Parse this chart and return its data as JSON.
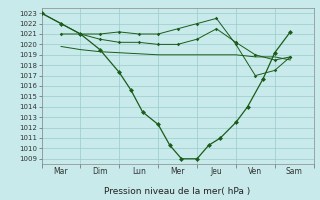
{
  "bg_color": "#c8eaea",
  "grid_color": "#99cccc",
  "line_color": "#1a5c1a",
  "ylim": [
    1008.5,
    1023.5
  ],
  "yticks": [
    1009,
    1010,
    1011,
    1012,
    1013,
    1014,
    1015,
    1016,
    1017,
    1018,
    1019,
    1020,
    1021,
    1022,
    1023
  ],
  "xlabel": "Pression niveau de la mer( hPa )",
  "days": [
    "Mar",
    "Dim",
    "Lun",
    "Mer",
    "Jeu",
    "Ven",
    "Sam"
  ],
  "day_positions": [
    0.5,
    1.5,
    2.5,
    3.5,
    4.5,
    5.5,
    6.5
  ],
  "xlim": [
    0,
    7
  ],
  "main_x": [
    0.0,
    0.5,
    1.0,
    1.5,
    2.0,
    2.3,
    2.6,
    3.0,
    3.3,
    3.6,
    4.0,
    4.3,
    4.6,
    5.0,
    5.3,
    5.7,
    6.0,
    6.4
  ],
  "main_y": [
    1023.0,
    1022.0,
    1021.0,
    1019.5,
    1017.3,
    1015.6,
    1013.5,
    1012.3,
    1010.3,
    1009.0,
    1009.0,
    1010.3,
    1011.0,
    1012.5,
    1014.0,
    1016.7,
    1019.2,
    1021.2
  ],
  "line1_x": [
    0.0,
    0.5,
    1.0,
    1.5,
    2.0,
    2.5,
    3.0,
    3.5,
    4.0,
    4.5,
    5.0,
    5.5,
    6.0,
    6.4
  ],
  "line1_y": [
    1023.0,
    1022.0,
    1021.0,
    1021.0,
    1021.2,
    1021.0,
    1021.0,
    1021.5,
    1022.0,
    1022.5,
    1020.0,
    1017.0,
    1017.5,
    1018.8
  ],
  "line2_x": [
    0.5,
    1.0,
    1.5,
    2.0,
    2.5,
    3.0,
    3.5,
    4.0,
    4.5,
    5.0,
    5.5,
    6.0,
    6.4
  ],
  "line2_y": [
    1021.0,
    1021.0,
    1020.5,
    1020.2,
    1020.2,
    1020.0,
    1020.0,
    1020.5,
    1021.5,
    1020.2,
    1019.0,
    1018.5,
    1018.8
  ],
  "line3_x": [
    0.5,
    1.0,
    1.5,
    2.0,
    2.5,
    3.0,
    3.5,
    4.0,
    4.5,
    5.0,
    5.5,
    6.0,
    6.4
  ],
  "line3_y": [
    1019.8,
    1019.5,
    1019.3,
    1019.2,
    1019.1,
    1019.0,
    1019.0,
    1019.0,
    1019.0,
    1019.0,
    1018.8,
    1018.8,
    1018.5
  ]
}
